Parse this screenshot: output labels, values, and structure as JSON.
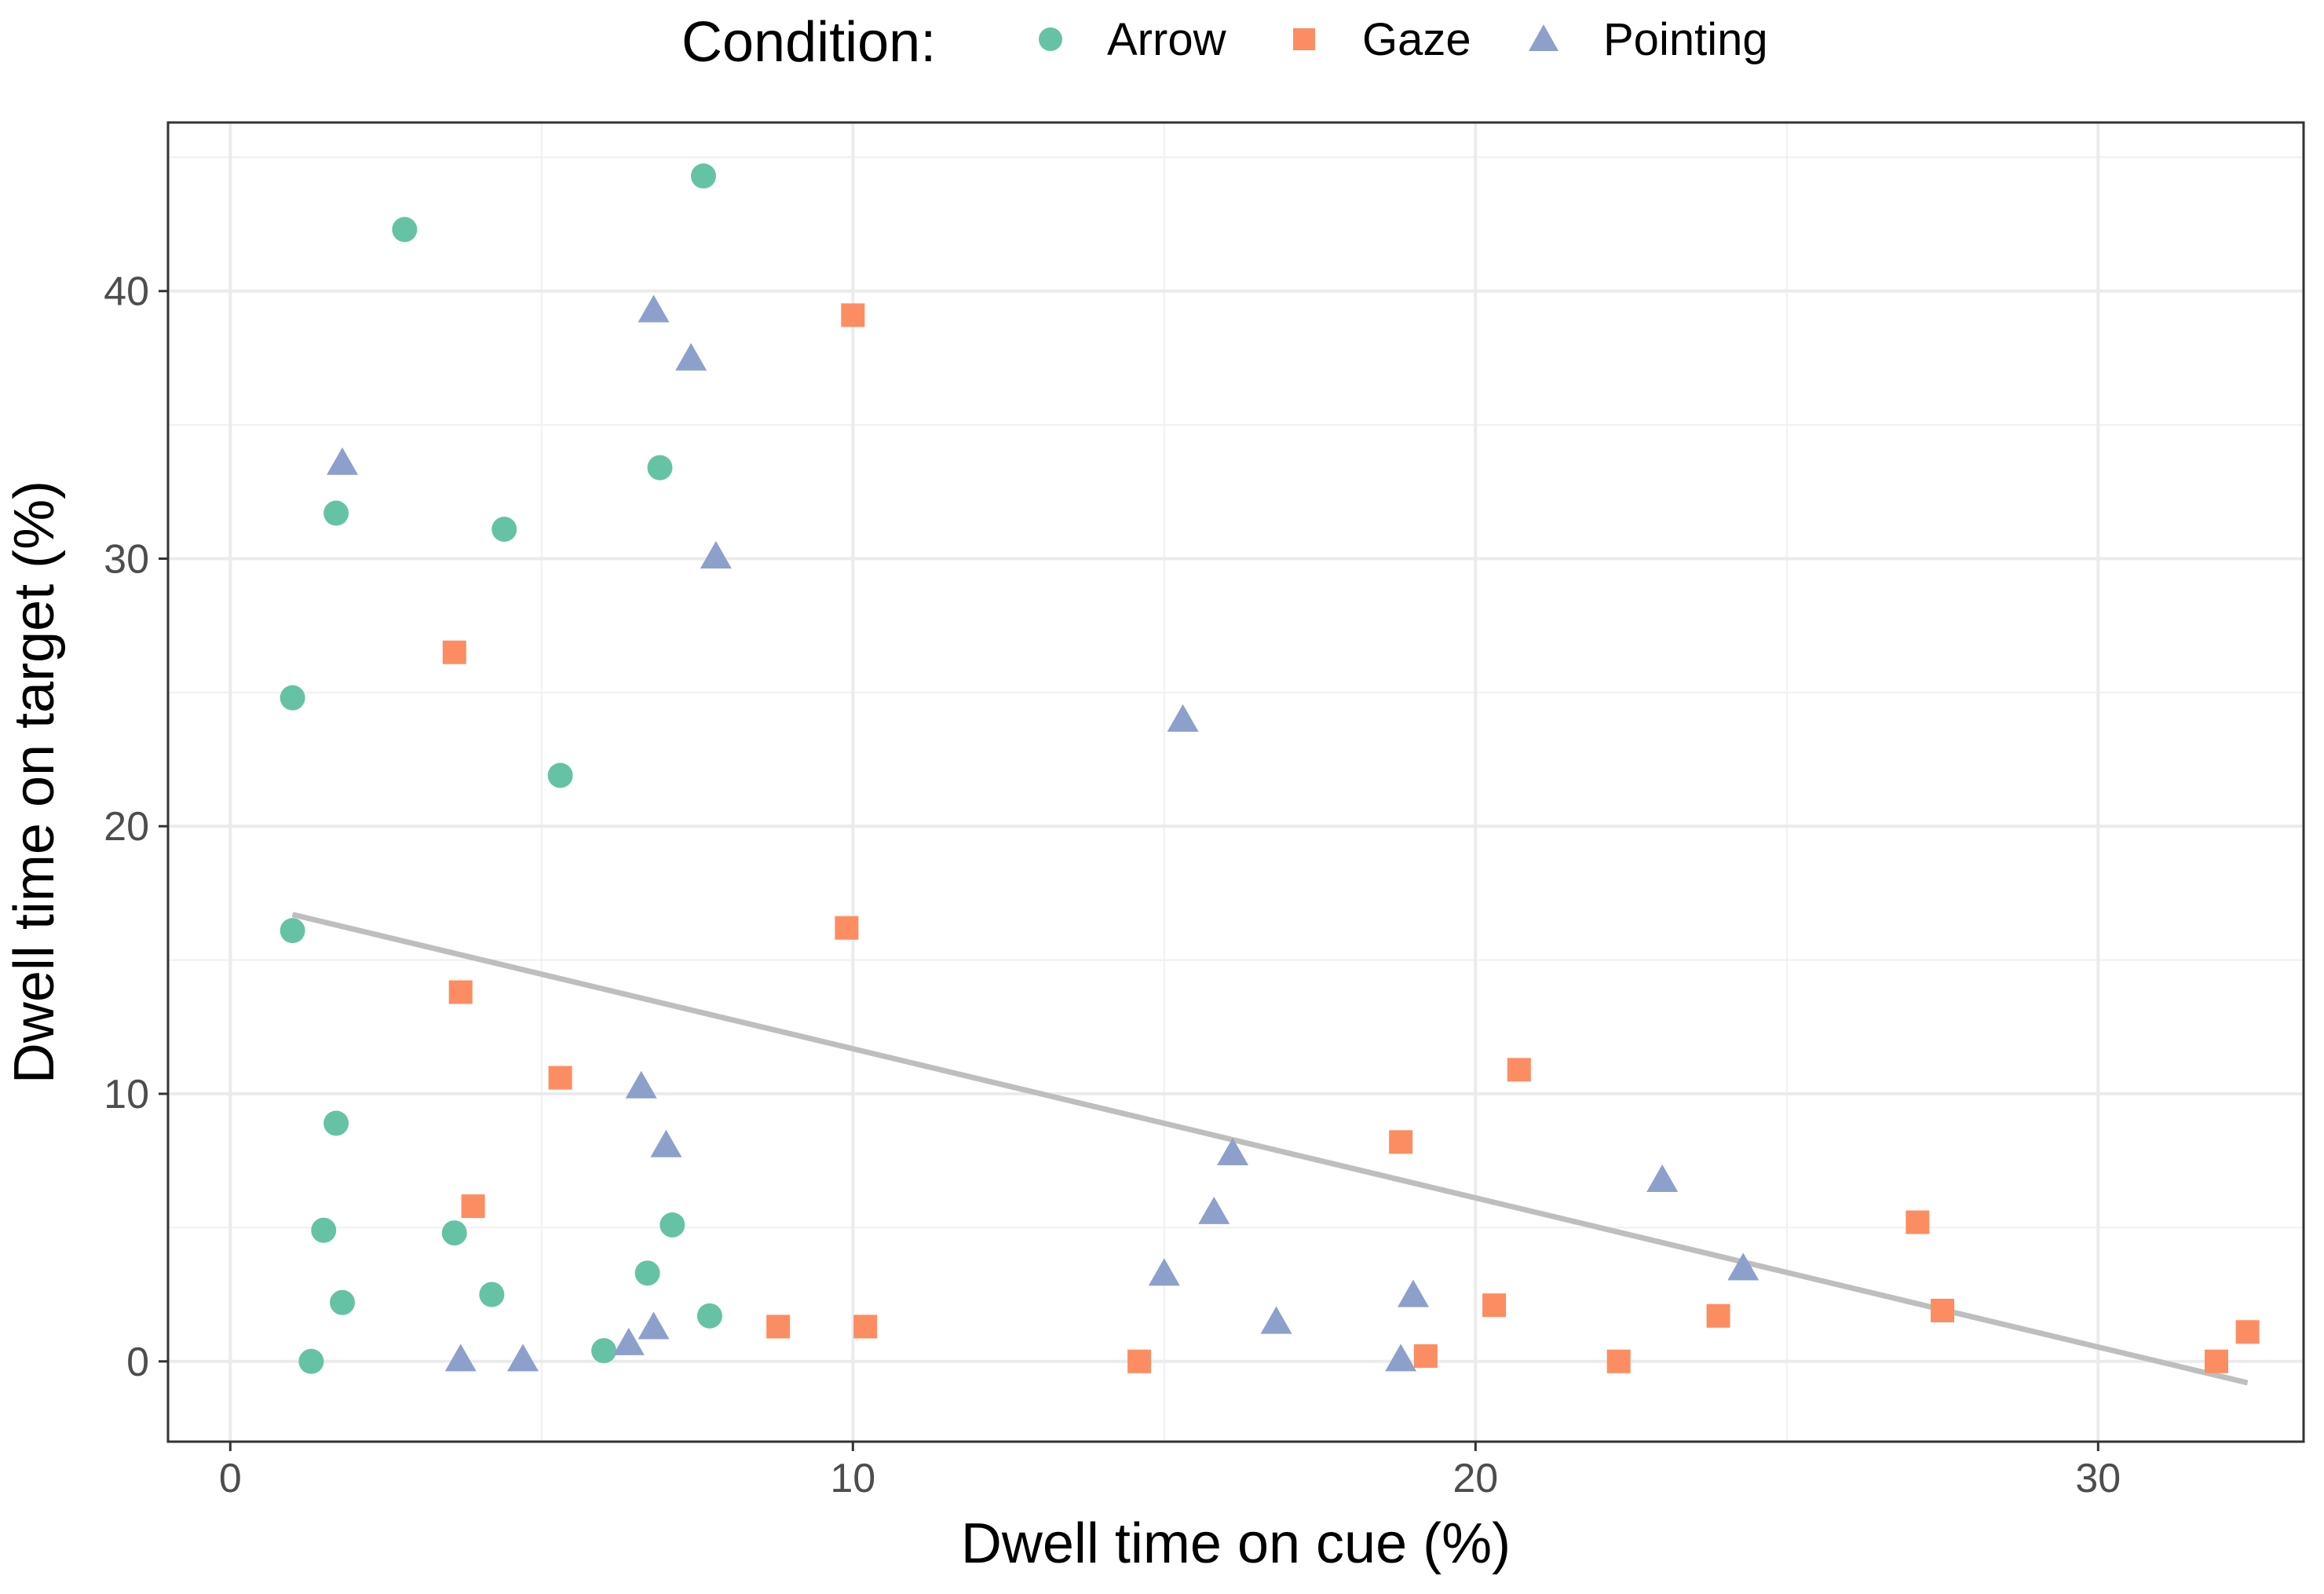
{
  "chart_data": {
    "type": "scatter",
    "xlabel": "Dwell time on cue (%)",
    "ylabel": "Dwell time on target (%)",
    "xlim": [
      -1,
      33.3
    ],
    "ylim": [
      -3,
      46.3
    ],
    "x_ticks": [
      0,
      10,
      20,
      30
    ],
    "y_ticks": [
      0,
      10,
      20,
      30,
      40
    ],
    "x_tick_labels": [
      "0",
      "10",
      "20",
      "30"
    ],
    "y_tick_labels": [
      "0",
      "10",
      "20",
      "30",
      "40"
    ],
    "grid": true,
    "legend": {
      "title": "Condition:",
      "position": "top",
      "entries": [
        "Arrow",
        "Gaze",
        "Pointing"
      ]
    },
    "series": [
      {
        "name": "Arrow",
        "marker": "circle",
        "color": "#66c2a5",
        "points": [
          [
            2.8,
            42.3
          ],
          [
            7.6,
            44.3
          ],
          [
            1.7,
            31.7
          ],
          [
            4.4,
            31.1
          ],
          [
            6.9,
            33.4
          ],
          [
            1.0,
            24.8
          ],
          [
            5.3,
            21.9
          ],
          [
            1.0,
            16.1
          ],
          [
            1.7,
            8.9
          ],
          [
            1.5,
            4.9
          ],
          [
            3.6,
            4.8
          ],
          [
            7.1,
            5.1
          ],
          [
            6.7,
            3.3
          ],
          [
            1.8,
            2.2
          ],
          [
            4.2,
            2.5
          ],
          [
            7.7,
            1.7
          ],
          [
            6.0,
            0.4
          ],
          [
            1.3,
            0.0
          ]
        ]
      },
      {
        "name": "Gaze",
        "marker": "square",
        "color": "#fc8d62",
        "points": [
          [
            10.0,
            39.1
          ],
          [
            3.6,
            26.5
          ],
          [
            9.9,
            16.2
          ],
          [
            3.7,
            13.8
          ],
          [
            5.3,
            10.6
          ],
          [
            3.9,
            5.8
          ],
          [
            8.8,
            1.3
          ],
          [
            10.2,
            1.3
          ],
          [
            14.6,
            0.0
          ],
          [
            18.8,
            8.2
          ],
          [
            20.7,
            10.9
          ],
          [
            19.2,
            0.2
          ],
          [
            20.3,
            2.1
          ],
          [
            22.3,
            0.0
          ],
          [
            23.9,
            1.7
          ],
          [
            27.1,
            5.2
          ],
          [
            27.5,
            1.9
          ],
          [
            31.9,
            0.0
          ],
          [
            32.4,
            1.1
          ]
        ]
      },
      {
        "name": "Pointing",
        "marker": "triangle",
        "color": "#8da0cb",
        "points": [
          [
            6.8,
            39.3
          ],
          [
            7.4,
            37.5
          ],
          [
            1.8,
            33.6
          ],
          [
            7.8,
            30.1
          ],
          [
            15.3,
            24.0
          ],
          [
            6.6,
            10.3
          ],
          [
            7.0,
            8.1
          ],
          [
            16.1,
            7.8
          ],
          [
            15.8,
            5.6
          ],
          [
            15.0,
            3.3
          ],
          [
            16.8,
            1.5
          ],
          [
            19.0,
            2.5
          ],
          [
            18.8,
            0.1
          ],
          [
            23.0,
            6.8
          ],
          [
            24.3,
            3.5
          ],
          [
            3.7,
            0.1
          ],
          [
            4.7,
            0.1
          ],
          [
            6.4,
            0.7
          ],
          [
            6.8,
            1.3
          ]
        ]
      }
    ],
    "trend_line": {
      "color": "#bebebe",
      "x": [
        1.0,
        32.4
      ],
      "y": [
        16.7,
        -0.8
      ]
    }
  }
}
